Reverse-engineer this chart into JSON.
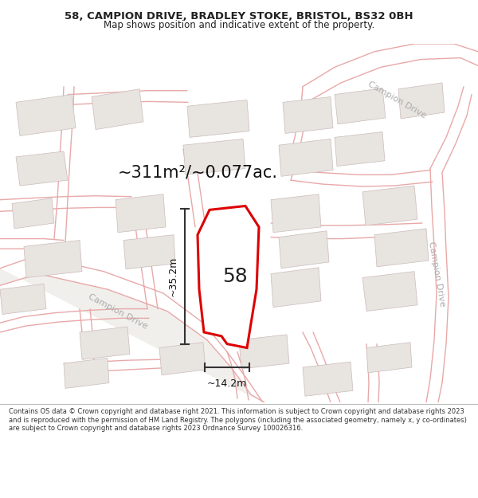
{
  "title_line1": "58, CAMPION DRIVE, BRADLEY STOKE, BRISTOL, BS32 0BH",
  "title_line2": "Map shows position and indicative extent of the property.",
  "area_text": "~311m²/~0.077ac.",
  "label_58": "58",
  "dim_height": "~35.2m",
  "dim_width": "~14.2m",
  "footer_text": "Contains OS data © Crown copyright and database right 2021. This information is subject to Crown copyright and database rights 2023 and is reproduced with the permission of HM Land Registry. The polygons (including the associated geometry, namely x, y co-ordinates) are subject to Crown copyright and database rights 2023 Ordnance Survey 100026316.",
  "map_bg": "#f7f4f2",
  "road_color": "#e8a8a8",
  "plot_outline_color": "#dd0000",
  "building_edge_color": "#ccbbbb",
  "building_fill": "#e8e4e0",
  "road_label_color": "#aaaaaa",
  "dim_line_color": "#333333",
  "title_color": "#222222",
  "footer_color": "#333333",
  "title_fontsize": 9.5,
  "subtitle_fontsize": 8.5,
  "area_fontsize": 15,
  "dim_fontsize": 9,
  "label58_fontsize": 18,
  "road_label_fontsize": 8,
  "footer_fontsize": 6.0,
  "road_linewidth": 1.0,
  "plot_linewidth": 2.2,
  "dim_linewidth": 1.5
}
